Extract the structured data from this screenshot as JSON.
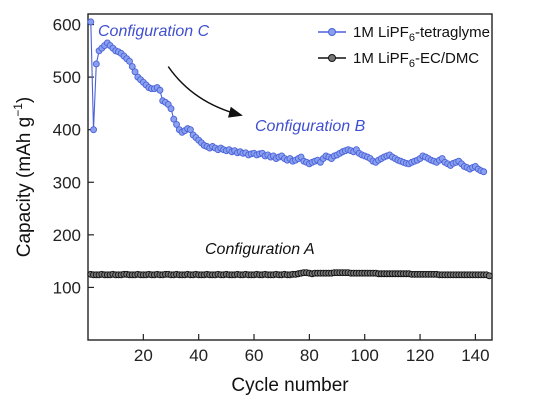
{
  "chart_data": {
    "type": "scatter",
    "xlabel": "Cycle number",
    "ylabel_main": "Capacity (mAh g",
    "ylabel_sup": "−1",
    "ylabel_close": ")",
    "xlim": [
      0,
      146
    ],
    "ylim": [
      0,
      620
    ],
    "xticks": [
      20,
      40,
      60,
      80,
      100,
      120,
      140
    ],
    "yticks": [
      100,
      200,
      300,
      400,
      500,
      600
    ],
    "grid": false,
    "legend_position": "top-right",
    "series": [
      {
        "legend_prefix": "1M LiPF",
        "legend_sub": "6",
        "legend_suffix": "-tetraglyme",
        "color": "#4a62d8",
        "fill": "#8aa0ee",
        "x": [
          1,
          2,
          3,
          4,
          5,
          6,
          7,
          8,
          9,
          10,
          11,
          12,
          13,
          14,
          15,
          16,
          17,
          18,
          19,
          20,
          21,
          22,
          23,
          24,
          25,
          26,
          27,
          28,
          29,
          30,
          31,
          32,
          33,
          34,
          35,
          36,
          37,
          38,
          39,
          40,
          41,
          42,
          43,
          44,
          45,
          46,
          47,
          48,
          49,
          50,
          51,
          52,
          53,
          54,
          55,
          56,
          57,
          58,
          59,
          60,
          61,
          62,
          63,
          64,
          65,
          66,
          67,
          68,
          69,
          70,
          71,
          72,
          73,
          74,
          75,
          76,
          77,
          78,
          79,
          80,
          81,
          82,
          83,
          84,
          85,
          86,
          87,
          88,
          89,
          90,
          91,
          92,
          93,
          94,
          95,
          96,
          97,
          98,
          99,
          100,
          101,
          102,
          103,
          104,
          105,
          106,
          107,
          108,
          109,
          110,
          111,
          112,
          113,
          114,
          115,
          116,
          117,
          118,
          119,
          120,
          121,
          122,
          123,
          124,
          125,
          126,
          127,
          128,
          129,
          130,
          131,
          132,
          133,
          134,
          135,
          136,
          137,
          138,
          139,
          140,
          141,
          142,
          143
        ],
        "y": [
          605,
          400,
          525,
          550,
          555,
          560,
          565,
          560,
          555,
          550,
          548,
          545,
          540,
          535,
          530,
          520,
          510,
          500,
          495,
          490,
          485,
          480,
          478,
          478,
          480,
          475,
          455,
          452,
          448,
          440,
          420,
          410,
          400,
          395,
          398,
          402,
          400,
          390,
          385,
          380,
          375,
          370,
          368,
          365,
          368,
          365,
          362,
          365,
          362,
          360,
          362,
          358,
          360,
          356,
          358,
          355,
          356,
          352,
          354,
          355,
          352,
          354,
          355,
          350,
          352,
          348,
          350,
          345,
          348,
          350,
          345,
          342,
          345,
          340,
          342,
          345,
          348,
          340,
          338,
          335,
          338,
          340,
          342,
          338,
          345,
          350,
          348,
          345,
          350,
          352,
          355,
          358,
          360,
          362,
          360,
          358,
          362,
          355,
          352,
          350,
          348,
          345,
          340,
          338,
          342,
          345,
          348,
          350,
          352,
          348,
          345,
          342,
          340,
          338,
          336,
          335,
          338,
          340,
          342,
          345,
          350,
          348,
          345,
          342,
          340,
          338,
          342,
          345,
          338,
          335,
          332,
          336,
          338,
          340,
          335,
          330,
          328,
          325,
          328,
          330,
          325,
          322,
          320
        ]
      },
      {
        "legend_prefix": "1M LiPF",
        "legend_sub": "6",
        "legend_suffix": "-EC/DMC",
        "color": "#111111",
        "fill": "#777777",
        "x": [
          1,
          2,
          3,
          4,
          5,
          6,
          7,
          8,
          9,
          10,
          11,
          12,
          13,
          14,
          15,
          16,
          17,
          18,
          19,
          20,
          21,
          22,
          23,
          24,
          25,
          26,
          27,
          28,
          29,
          30,
          31,
          32,
          33,
          34,
          35,
          36,
          37,
          38,
          39,
          40,
          41,
          42,
          43,
          44,
          45,
          46,
          47,
          48,
          49,
          50,
          51,
          52,
          53,
          54,
          55,
          56,
          57,
          58,
          59,
          60,
          61,
          62,
          63,
          64,
          65,
          66,
          67,
          68,
          69,
          70,
          71,
          72,
          73,
          74,
          75,
          76,
          77,
          78,
          79,
          80,
          81,
          82,
          83,
          84,
          85,
          86,
          87,
          88,
          89,
          90,
          91,
          92,
          93,
          94,
          95,
          96,
          97,
          98,
          99,
          100,
          101,
          102,
          103,
          104,
          105,
          106,
          107,
          108,
          109,
          110,
          111,
          112,
          113,
          114,
          115,
          116,
          117,
          118,
          119,
          120,
          121,
          122,
          123,
          124,
          125,
          126,
          127,
          128,
          129,
          130,
          131,
          132,
          133,
          134,
          135,
          136,
          137,
          138,
          139,
          140,
          141,
          142,
          143,
          144,
          145
        ],
        "y": [
          125,
          124,
          124,
          124,
          125,
          124,
          124,
          124,
          125,
          124,
          124,
          124,
          125,
          125,
          124,
          124,
          124,
          125,
          124,
          124,
          124,
          125,
          124,
          124,
          125,
          124,
          124,
          125,
          125,
          124,
          124,
          125,
          124,
          124,
          124,
          125,
          124,
          124,
          125,
          124,
          124,
          124,
          125,
          124,
          124,
          124,
          125,
          124,
          124,
          125,
          124,
          124,
          124,
          125,
          124,
          124,
          125,
          124,
          124,
          124,
          125,
          124,
          124,
          125,
          124,
          124,
          124,
          125,
          124,
          124,
          125,
          124,
          124,
          125,
          125,
          126,
          127,
          128,
          128,
          127,
          126,
          127,
          127,
          127,
          127,
          127,
          127,
          127,
          128,
          128,
          128,
          128,
          128,
          128,
          127,
          127,
          127,
          127,
          127,
          127,
          127,
          127,
          127,
          127,
          126,
          126,
          126,
          126,
          126,
          126,
          126,
          126,
          126,
          126,
          126,
          126,
          125,
          125,
          125,
          125,
          125,
          125,
          125,
          125,
          125,
          125,
          124,
          124,
          124,
          124,
          124,
          124,
          124,
          124,
          124,
          124,
          124,
          124,
          124,
          124,
          124,
          124,
          124,
          124,
          122
        ]
      }
    ],
    "annotations": [
      {
        "text": "Configuration C",
        "color": "#3f4fd0"
      },
      {
        "text": "Configuration B",
        "color": "#3f4fd0"
      },
      {
        "text": "Configuration A",
        "color": "#111111"
      }
    ],
    "arrow": {
      "from": [
        29,
        520
      ],
      "to": [
        55,
        428
      ]
    }
  }
}
